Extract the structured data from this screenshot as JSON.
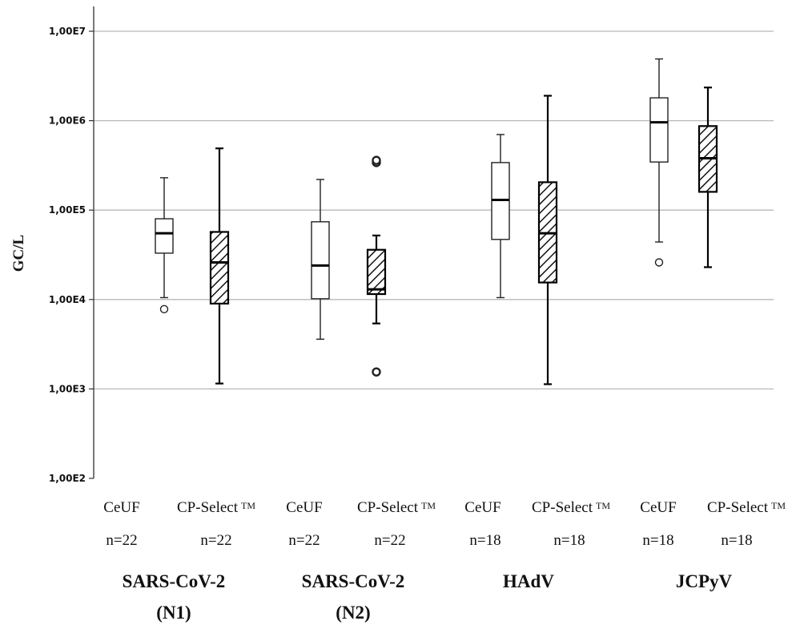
{
  "chart_data": {
    "type": "box",
    "ylabel": "GC/L",
    "yscale": "log",
    "ylim": [
      100,
      10000000
    ],
    "yticks": [
      {
        "value": 100,
        "label": "1,00E2"
      },
      {
        "value": 1000,
        "label": "1,00E3"
      },
      {
        "value": 10000,
        "label": "1,00E4"
      },
      {
        "value": 100000,
        "label": "1,00E5"
      },
      {
        "value": 1000000,
        "label": "1,00E6"
      },
      {
        "value": 10000000,
        "label": "1,00E7"
      }
    ],
    "grid": "horizontal",
    "groups": [
      {
        "name_line1": "SARS-CoV-2",
        "name_line2": "(N1)"
      },
      {
        "name_line1": "SARS-CoV-2",
        "name_line2": "(N2)"
      },
      {
        "name_line1": "HAdV",
        "name_line2": ""
      },
      {
        "name_line1": "JCPyV",
        "name_line2": ""
      }
    ],
    "boxes": [
      {
        "group": 0,
        "method": "CeUF",
        "suffix": "",
        "n": "n=22",
        "style": "plain",
        "whisker_low": 10500,
        "q1": 33000,
        "median": 55000,
        "q3": 80000,
        "whisker_high": 230000,
        "outliers": [
          7800
        ]
      },
      {
        "group": 0,
        "method": "CP-Select",
        "suffix": "TM",
        "n": "n=22",
        "style": "hatched",
        "whisker_low": 1150,
        "q1": 9000,
        "median": 26000,
        "q3": 57000,
        "whisker_high": 490000,
        "outliers": []
      },
      {
        "group": 1,
        "method": "CeUF",
        "suffix": "",
        "n": "n=22",
        "style": "plain",
        "whisker_low": 3600,
        "q1": 10200,
        "median": 24000,
        "q3": 74000,
        "whisker_high": 220000,
        "outliers": []
      },
      {
        "group": 1,
        "method": "CP-Select",
        "suffix": "TM",
        "n": "n=22",
        "style": "hatched",
        "whisker_low": 5400,
        "q1": 11500,
        "median": 13000,
        "q3": 36000,
        "whisker_high": 52000,
        "outliers": [
          1550,
          340000,
          360000
        ]
      },
      {
        "group": 2,
        "method": "CeUF",
        "suffix": "",
        "n": "n=18",
        "style": "plain",
        "whisker_low": 10500,
        "q1": 47000,
        "median": 130000,
        "q3": 340000,
        "whisker_high": 700000,
        "outliers": []
      },
      {
        "group": 2,
        "method": "CP-Select",
        "suffix": "TM",
        "n": "n=18",
        "style": "hatched",
        "whisker_low": 1130,
        "q1": 15500,
        "median": 55000,
        "q3": 205000,
        "whisker_high": 1900000,
        "outliers": []
      },
      {
        "group": 3,
        "method": "CeUF",
        "suffix": "",
        "n": "n=18",
        "style": "plain",
        "whisker_low": 44000,
        "q1": 345000,
        "median": 960000,
        "q3": 1800000,
        "whisker_high": 4900000,
        "outliers": [
          26000
        ]
      },
      {
        "group": 3,
        "method": "CP-Select",
        "suffix": "TM",
        "n": "n=18",
        "style": "hatched",
        "whisker_low": 23000,
        "q1": 160000,
        "median": 380000,
        "q3": 870000,
        "whisker_high": 2350000,
        "outliers": []
      }
    ]
  }
}
